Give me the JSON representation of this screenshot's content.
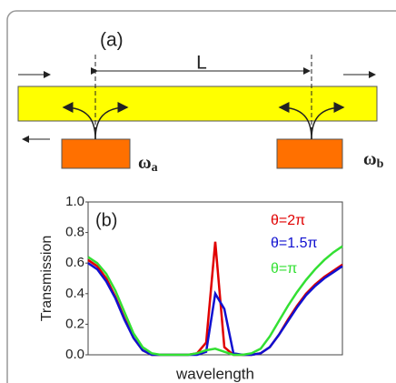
{
  "panel_a": {
    "label": "(a)",
    "length_label": "L",
    "omega_a": {
      "symbol": "ω",
      "subscript": "a",
      "color": "#e00000"
    },
    "omega_b": {
      "symbol": "ω",
      "subscript": "b",
      "color": "#1010d0"
    }
  },
  "chart_data": {
    "type": "line",
    "panel_label": "(b)",
    "y_label": "Transmission",
    "x_label": "wavelength",
    "ylim": [
      0,
      1
    ],
    "yticks": [
      {
        "value": 0,
        "label": "0.0"
      },
      {
        "value": 0.2,
        "label": "0.2"
      },
      {
        "value": 0.4,
        "label": "0.4"
      },
      {
        "value": 0.6,
        "label": "0.6"
      },
      {
        "value": 0.8,
        "label": "0.8"
      },
      {
        "value": 1,
        "label": "1.0"
      }
    ],
    "series": [
      {
        "name": "θ=2π",
        "color": "#e00000",
        "values": [
          0.62,
          0.58,
          0.5,
          0.38,
          0.24,
          0.11,
          0.03,
          0,
          0,
          0,
          0,
          0,
          0.01,
          0.08,
          0.74,
          0.05,
          0,
          0,
          0,
          0.01,
          0.05,
          0.13,
          0.23,
          0.32,
          0.4,
          0.46,
          0.51,
          0.55,
          0.59
        ]
      },
      {
        "name": "θ=1.5π",
        "color": "#1010d0",
        "values": [
          0.6,
          0.56,
          0.48,
          0.37,
          0.23,
          0.11,
          0.03,
          0,
          0,
          0,
          0,
          0,
          0,
          0.02,
          0.4,
          0.3,
          0.01,
          0,
          0,
          0.01,
          0.05,
          0.13,
          0.22,
          0.31,
          0.39,
          0.45,
          0.5,
          0.54,
          0.58
        ]
      },
      {
        "name": "θ=π",
        "color": "#33e033",
        "values": [
          0.64,
          0.6,
          0.53,
          0.42,
          0.28,
          0.14,
          0.05,
          0.01,
          0,
          0,
          0,
          0,
          0.01,
          0.03,
          0.04,
          0.02,
          0,
          0,
          0.01,
          0.04,
          0.12,
          0.22,
          0.32,
          0.41,
          0.49,
          0.56,
          0.62,
          0.67,
          0.71
        ]
      }
    ]
  }
}
